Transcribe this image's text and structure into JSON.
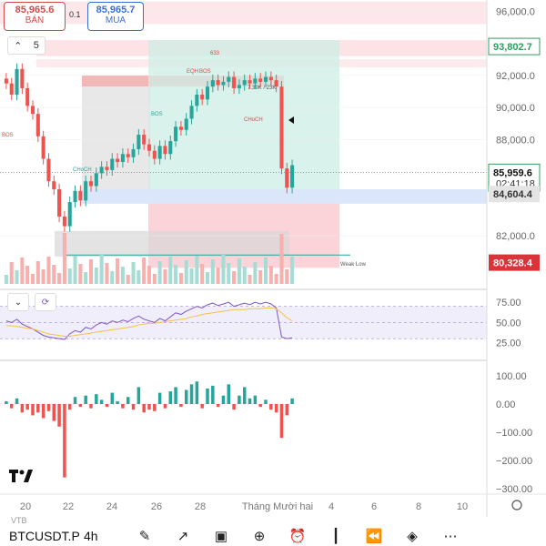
{
  "quotes": {
    "sell_price": "85,965.6",
    "sell_label": "BÁN",
    "spread": "0.1",
    "buy_price": "85,965.7",
    "buy_label": "MUA"
  },
  "indicator_count": "5",
  "price_axis_labels": [
    "96,000.0",
    "92,000.0",
    "90,000.0",
    "88,000.0",
    "82,000.0"
  ],
  "price_tags": {
    "top_zone": "93,802.7",
    "current": "85,959.6",
    "countdown": "02:41:18",
    "support": "84,604.4",
    "stop": "80,328.4"
  },
  "annotations": [
    "BOS",
    "BOS",
    "BOS",
    "CHoCH",
    "CHoCH",
    "EQH",
    "7.39K / 23K",
    "Weak Low",
    "633"
  ],
  "rsi_axis": [
    "75.00",
    "50.00",
    "25.00"
  ],
  "osc_axis": [
    "100.00",
    "0.00",
    "−100.00",
    "−200.00",
    "−300.00"
  ],
  "time_axis": [
    "20",
    "22",
    "24",
    "26",
    "28",
    "Tháng Mười hai",
    "4",
    "6",
    "8",
    "10"
  ],
  "colors": {
    "up": "#26a69a",
    "down": "#ef5350",
    "rsi": "#7e57c2",
    "rsi_ma": "#f5c242"
  },
  "chart_data": {
    "type": "candlestick",
    "price_range": [
      79000,
      96700
    ],
    "closes": [
      91500,
      90800,
      92400,
      91200,
      90100,
      89600,
      88200,
      86800,
      85400,
      84900,
      83200,
      82600,
      84100,
      84800,
      84200,
      85400,
      85100,
      85900,
      86300,
      86100,
      86800,
      86600,
      87100,
      86900,
      87400,
      88300,
      87700,
      87300,
      86800,
      87600,
      87100,
      87900,
      88800,
      88600,
      89300,
      90100,
      90800,
      90500,
      91300,
      91700,
      91400,
      91600,
      91900,
      91200,
      91400,
      91700,
      91500,
      91800,
      91600,
      91900,
      91700,
      91300,
      86200,
      85000,
      86400
    ],
    "rsi": [
      52,
      50,
      54,
      48,
      45,
      42,
      38,
      34,
      32,
      31,
      30,
      29,
      36,
      40,
      38,
      44,
      42,
      47,
      50,
      48,
      52,
      50,
      53,
      51,
      55,
      58,
      54,
      52,
      50,
      55,
      52,
      57,
      62,
      60,
      64,
      67,
      70,
      68,
      72,
      74,
      71,
      73,
      75,
      70,
      72,
      74,
      72,
      75,
      73,
      75,
      73,
      68,
      32,
      30,
      31
    ],
    "rsi_ma": [
      46,
      46,
      45,
      44,
      43,
      42,
      40,
      38,
      36,
      35,
      34,
      33,
      33,
      34,
      35,
      36,
      37,
      38,
      39,
      40,
      41,
      42,
      43,
      44,
      45,
      47,
      48,
      49,
      49,
      50,
      51,
      52,
      53,
      54,
      55,
      57,
      58,
      60,
      61,
      62,
      63,
      64,
      65,
      66,
      66,
      66,
      67,
      67,
      67,
      68,
      68,
      67,
      62,
      56,
      52
    ],
    "oscillator": [
      10,
      -15,
      20,
      -30,
      -20,
      -40,
      -30,
      -50,
      -25,
      -60,
      -80,
      -260,
      -20,
      25,
      -10,
      30,
      -15,
      35,
      15,
      -10,
      40,
      10,
      -15,
      25,
      -20,
      60,
      -30,
      -20,
      -25,
      40,
      -15,
      45,
      60,
      -10,
      50,
      70,
      80,
      -15,
      55,
      65,
      -10,
      30,
      70,
      -20,
      30,
      60,
      20,
      30,
      -10,
      15,
      -20,
      -30,
      -120,
      -40,
      20
    ],
    "volume_note": "volume histogram shown at base of price pane"
  }
}
